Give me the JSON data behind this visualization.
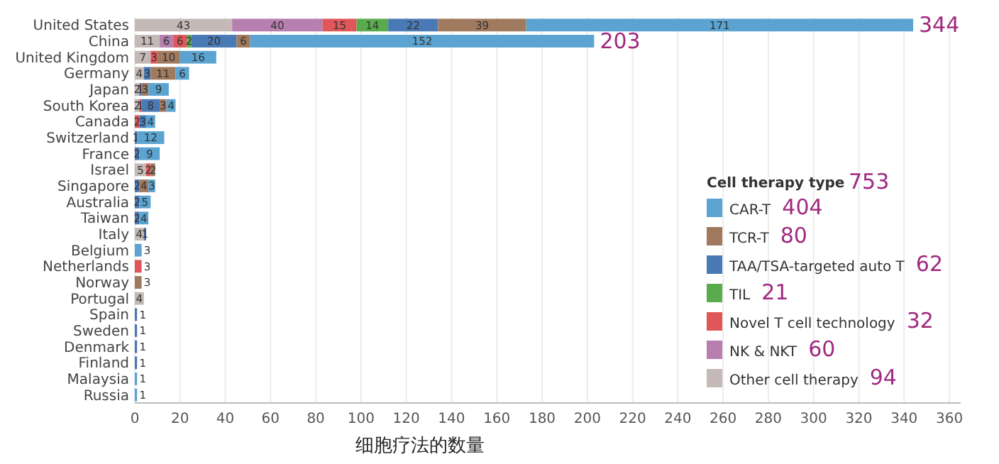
{
  "chart_data": {
    "type": "bar",
    "orientation": "horizontal",
    "stacked": true,
    "xlabel": "细胞疗法的数量",
    "legend_title": "Cell therapy type",
    "legend": "right",
    "grid": "x",
    "data_labels": true,
    "categories": [
      "United States",
      "China",
      "United Kingdom",
      "Germany",
      "Japan",
      "South Korea",
      "Canada",
      "Switzerland",
      "France",
      "Israel",
      "Singapore",
      "Australia",
      "Taiwan",
      "Italy",
      "Belgium",
      "Netherlands",
      "Norway",
      "Portugal",
      "Spain",
      "Sweden",
      "Denmark",
      "Finland",
      "Malaysia",
      "Russia"
    ],
    "xlim": [
      0,
      365
    ],
    "xticks": [
      0,
      20,
      40,
      60,
      80,
      100,
      120,
      140,
      160,
      180,
      200,
      220,
      240,
      260,
      280,
      300,
      320,
      340,
      360
    ],
    "series": [
      {
        "name": "Other cell therapy",
        "color": "#c4b9b6",
        "values": [
          43,
          11,
          7,
          4,
          2,
          2,
          null,
          null,
          null,
          5,
          null,
          null,
          null,
          4,
          null,
          null,
          null,
          4,
          null,
          null,
          null,
          null,
          null,
          null
        ]
      },
      {
        "name": "NK & NKT",
        "color": "#b77fb0",
        "values": [
          40,
          6,
          null,
          null,
          null,
          null,
          null,
          null,
          null,
          null,
          null,
          null,
          null,
          null,
          null,
          null,
          null,
          null,
          null,
          null,
          null,
          null,
          null,
          null
        ]
      },
      {
        "name": "Novel T cell technology",
        "color": "#e0575a",
        "values": [
          15,
          6,
          3,
          null,
          null,
          1,
          2,
          null,
          null,
          2,
          null,
          null,
          null,
          null,
          null,
          3,
          null,
          null,
          null,
          null,
          null,
          null,
          null,
          null
        ]
      },
      {
        "name": "TIL",
        "color": "#5aab4e",
        "values": [
          14,
          2,
          null,
          null,
          null,
          null,
          null,
          null,
          null,
          null,
          null,
          null,
          null,
          null,
          null,
          null,
          null,
          null,
          null,
          null,
          null,
          null,
          null,
          null
        ]
      },
      {
        "name": "TAA/TSA-targeted auto T",
        "color": "#4a7ab5",
        "values": [
          22,
          20,
          null,
          3,
          1,
          8,
          3,
          1,
          2,
          null,
          2,
          2,
          2,
          1,
          null,
          null,
          null,
          null,
          1,
          1,
          1,
          1,
          null,
          null
        ]
      },
      {
        "name": "TCR-T",
        "color": "#a07a5e",
        "values": [
          39,
          6,
          10,
          11,
          3,
          3,
          null,
          null,
          null,
          2,
          4,
          null,
          null,
          null,
          null,
          null,
          3,
          null,
          null,
          null,
          null,
          null,
          null,
          null
        ]
      },
      {
        "name": "CAR-T",
        "color": "#5ba3d0",
        "values": [
          171,
          152,
          16,
          6,
          9,
          4,
          4,
          12,
          9,
          null,
          3,
          5,
          4,
          null,
          3,
          null,
          null,
          null,
          null,
          null,
          null,
          null,
          1,
          1
        ]
      }
    ],
    "totals": [
      "344",
      "203",
      null,
      null,
      null,
      null,
      null,
      null,
      null,
      null,
      null,
      null,
      null,
      null,
      null,
      null,
      null,
      null,
      null,
      null,
      null,
      null,
      null,
      null
    ],
    "annotations": [
      "753",
      "94",
      "60",
      "32",
      "21",
      "62",
      "80",
      "404"
    ]
  }
}
